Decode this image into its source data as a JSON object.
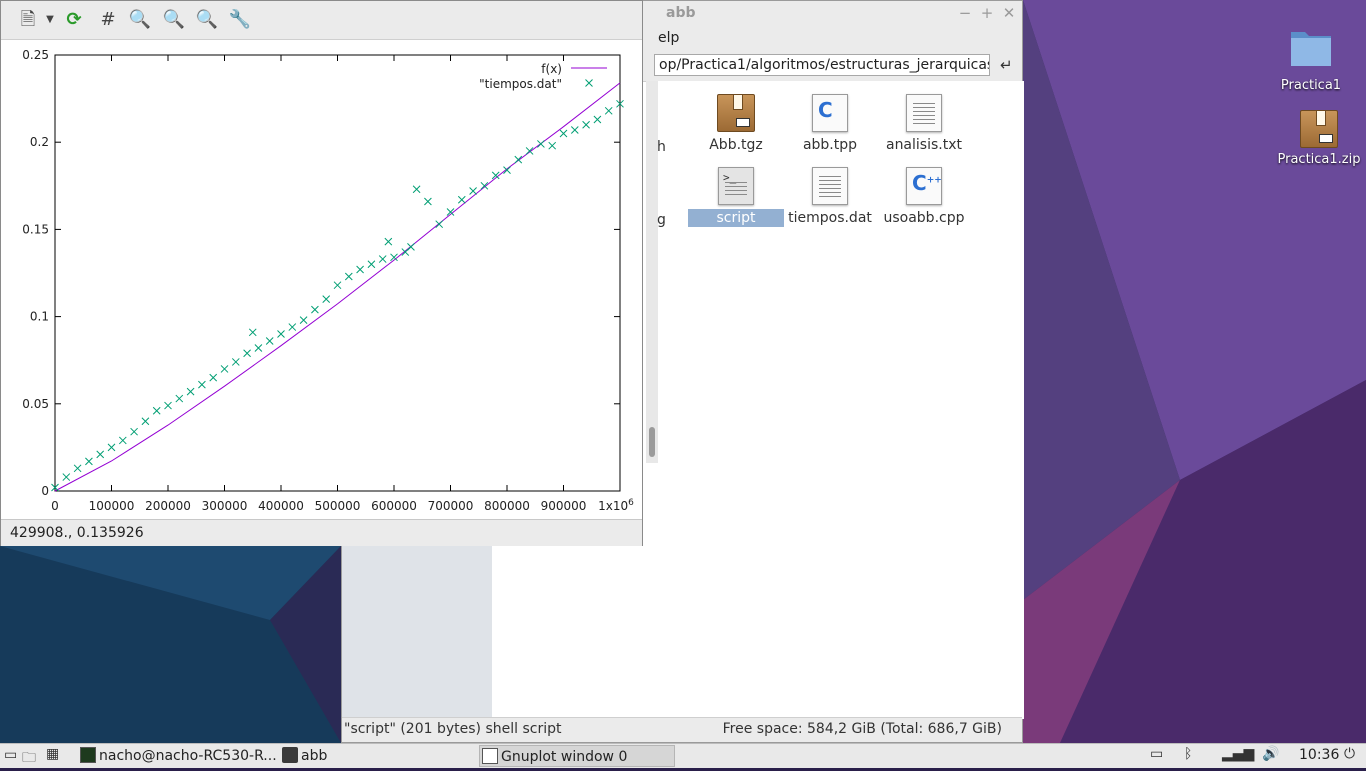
{
  "desktop": {
    "icons": [
      {
        "label": "Practica1",
        "icon": "folder-icon"
      },
      {
        "label": "Practica1.zip",
        "icon": "package-icon"
      }
    ]
  },
  "file_manager": {
    "title": "abb",
    "menu_partial": "elp",
    "path": "op/Practica1/algoritmos/estructuras_jerarquicas",
    "files": [
      {
        "name": "Abb.tgz",
        "icon": "package-icon"
      },
      {
        "name": "abb.tpp",
        "icon": "c-source-icon"
      },
      {
        "name": "analisis.txt",
        "icon": "text-file-icon"
      },
      {
        "name": "script",
        "icon": "shell-script-icon",
        "selected": true
      },
      {
        "name": "tiempos.dat",
        "icon": "text-file-icon"
      },
      {
        "name": "usoabb.cpp",
        "icon": "cpp-source-icon"
      }
    ],
    "partial_labels": [
      "h",
      "g"
    ],
    "status_left": "\"script\" (201 bytes) shell script",
    "status_right": "Free space: 584,2 GiB (Total: 686,7 GiB)"
  },
  "gnuplot": {
    "status": "429908., 0.135926",
    "colors": {
      "fit": "#9400d3",
      "data": "#009e73"
    }
  },
  "chart_data": {
    "type": "scatter",
    "title": "",
    "xlabel": "",
    "ylabel": "",
    "xlim": [
      0,
      1000000
    ],
    "ylim": [
      0,
      0.25
    ],
    "x_tick_labels": [
      "0",
      "100000",
      "200000",
      "300000",
      "400000",
      "500000",
      "600000",
      "700000",
      "800000",
      "900000",
      "1x10"
    ],
    "x_tick_exponent": "6",
    "y_tick_labels": [
      "0",
      "0.05",
      "0.1",
      "0.15",
      "0.2",
      "0.25"
    ],
    "legend_position": "top-right",
    "series": [
      {
        "name": "f(x)",
        "kind": "line",
        "x": [
          0,
          100000,
          200000,
          300000,
          400000,
          500000,
          600000,
          700000,
          800000,
          900000,
          1000000
        ],
        "y": [
          0,
          0.0172,
          0.0378,
          0.0601,
          0.0833,
          0.1073,
          0.1324,
          0.1586,
          0.1847,
          0.2089,
          0.234
        ]
      },
      {
        "name": "\"tiempos.dat\"",
        "kind": "points",
        "x": [
          0,
          20000,
          40000,
          60000,
          80000,
          100000,
          120000,
          140000,
          160000,
          180000,
          200000,
          220000,
          240000,
          260000,
          280000,
          300000,
          320000,
          340000,
          350000,
          360000,
          380000,
          400000,
          420000,
          440000,
          460000,
          480000,
          500000,
          520000,
          540000,
          560000,
          580000,
          590000,
          600000,
          620000,
          630000,
          640000,
          660000,
          680000,
          700000,
          720000,
          740000,
          760000,
          780000,
          800000,
          820000,
          840000,
          860000,
          880000,
          900000,
          920000,
          940000,
          960000,
          980000,
          1000000
        ],
        "y": [
          0.002,
          0.008,
          0.013,
          0.017,
          0.021,
          0.025,
          0.029,
          0.034,
          0.04,
          0.046,
          0.049,
          0.053,
          0.057,
          0.061,
          0.065,
          0.07,
          0.074,
          0.079,
          0.091,
          0.082,
          0.086,
          0.09,
          0.094,
          0.098,
          0.104,
          0.11,
          0.118,
          0.123,
          0.127,
          0.13,
          0.133,
          0.143,
          0.134,
          0.137,
          0.14,
          0.173,
          0.166,
          0.153,
          0.16,
          0.167,
          0.172,
          0.175,
          0.181,
          0.184,
          0.19,
          0.195,
          0.199,
          0.198,
          0.205,
          0.207,
          0.21,
          0.213,
          0.218,
          0.222
        ]
      }
    ]
  },
  "taskbar": {
    "tasks": [
      {
        "label": "nacho@nacho-RC530-R..."
      },
      {
        "label": "abb"
      },
      {
        "label": "Gnuplot window 0",
        "active": true
      }
    ],
    "clock": "10:36"
  }
}
